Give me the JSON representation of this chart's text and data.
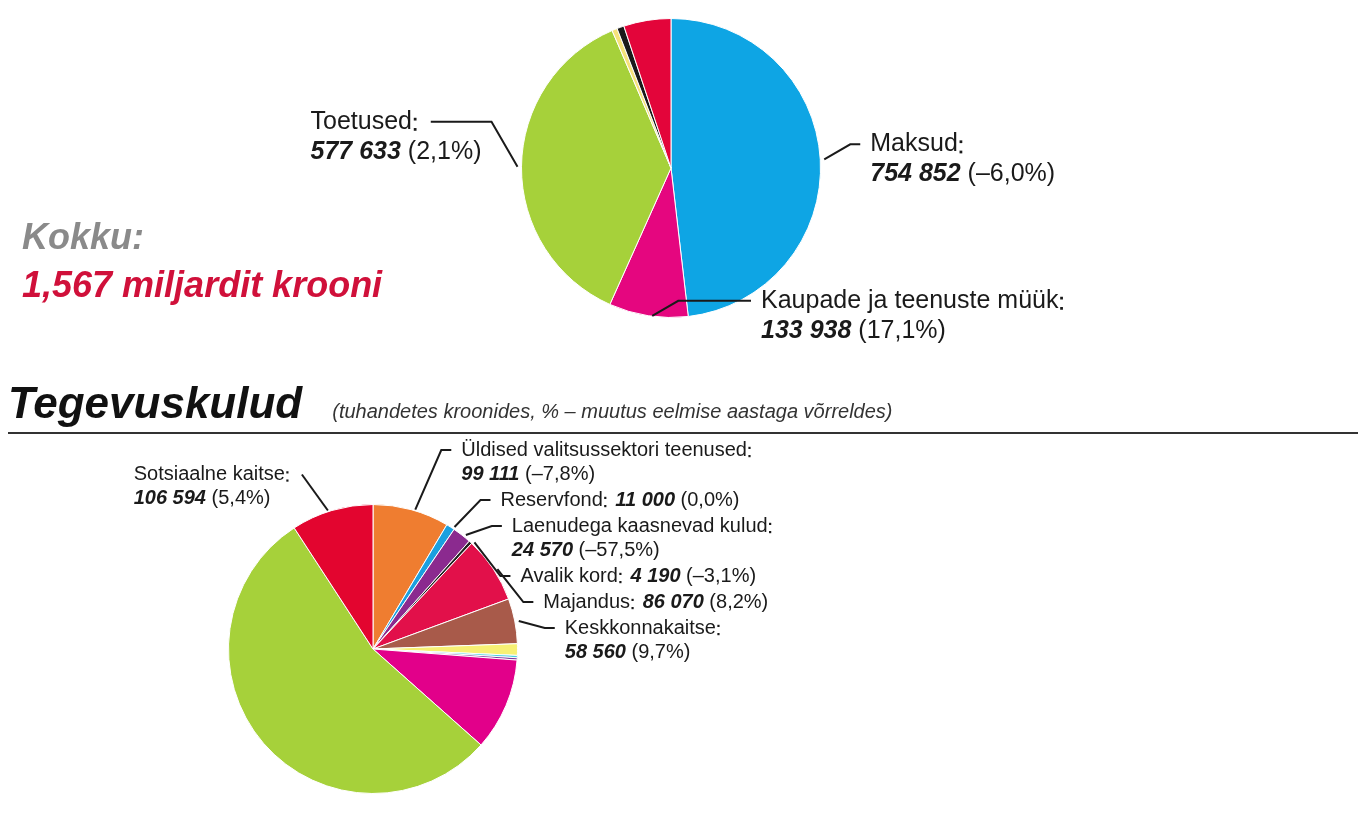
{
  "chart_data": [
    {
      "type": "pie",
      "categories": [
        "Maksud",
        "Kaupade ja teenuste müük",
        "Toetused",
        null,
        null,
        null
      ],
      "values": [
        754852,
        133938,
        577633,
        9000,
        12000,
        80000
      ],
      "colors": [
        "#0ea5e4",
        "#e5067f",
        "#a6d13a",
        "#f5e27a",
        "#1a1a1a",
        "#e3053a"
      ],
      "value_labels": [
        "754 852 (–6,0%)",
        "133 938 (17,1%)",
        "577 633 (2,1%)",
        null,
        null,
        null
      ],
      "annotations": [
        "Kokku:",
        "1,567 miljardit krooni"
      ]
    },
    {
      "type": "pie",
      "title": "Tegevuskulud",
      "subtitle": "(tuhandetes kroonides, % – muutus eelmise aastaga võrreldes)",
      "categories": [
        "Üldised valitsussektori teenused",
        "Reservfond",
        "Laenudega kaasnevad kulud",
        "Avalik kord",
        "Majandus",
        "Keskkonnakaitse",
        null,
        null,
        null,
        null,
        null,
        "Sotsiaalne kaitse"
      ],
      "values": [
        99111,
        11000,
        24570,
        4190,
        86070,
        58560,
        15000,
        3000,
        3000,
        120000,
        630000,
        106594
      ],
      "colors": [
        "#ef7d30",
        "#1aa0e0",
        "#8b2a8f",
        "#222222",
        "#e2104a",
        "#a85a4a",
        "#f7f074",
        "#46d0e0",
        "#7a3aa0",
        "#e2008a",
        "#a6d13a",
        "#e3052f"
      ],
      "value_labels": [
        "99 111 (–7,8%)",
        "11 000 (0,0%)",
        "24 570 (–57,5%)",
        "4 190 (–3,1%)",
        "86 070 (8,2%)",
        "58 560 (9,7%)",
        null,
        null,
        null,
        null,
        null,
        "106 594 (5,4%)"
      ]
    }
  ]
}
